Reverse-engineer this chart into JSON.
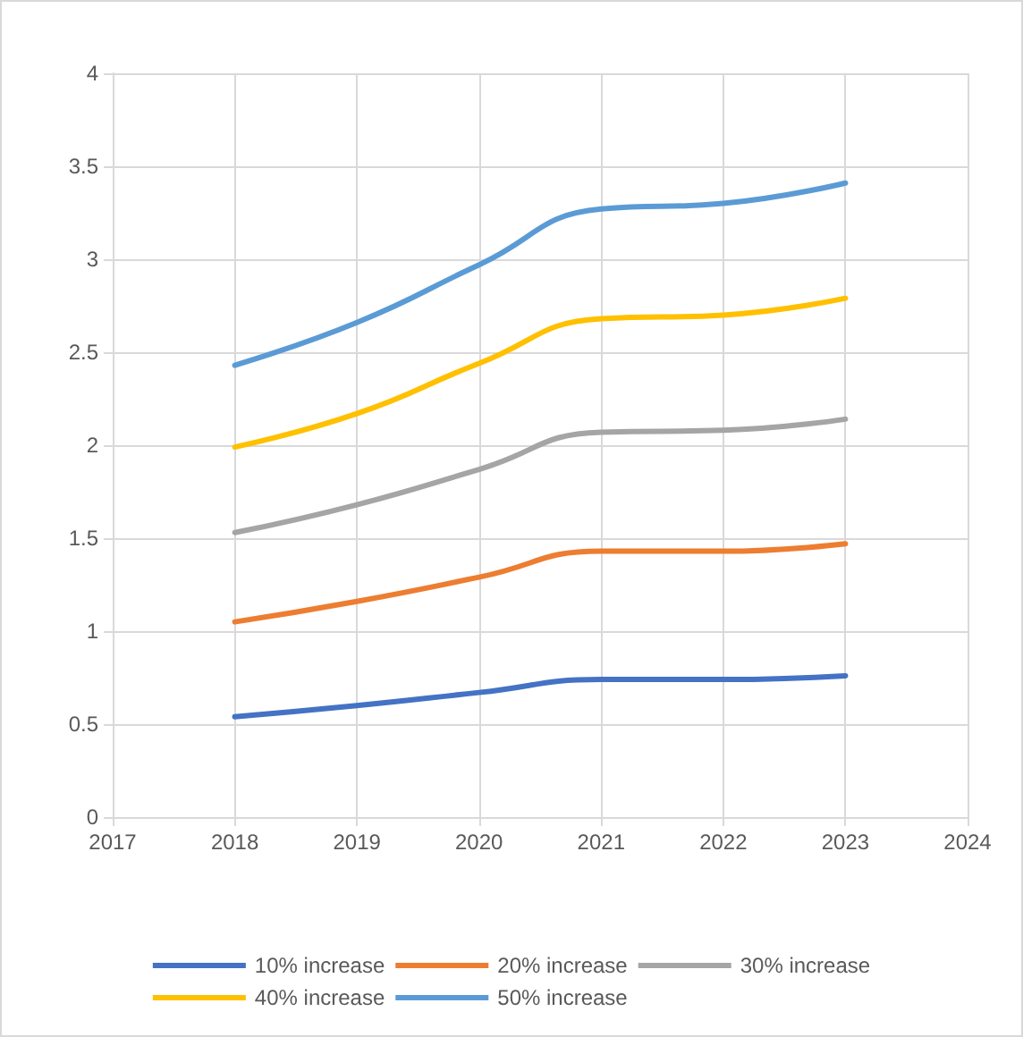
{
  "chart_data": {
    "type": "line",
    "x": [
      2018,
      2019,
      2020,
      2021,
      2022,
      2023
    ],
    "series": [
      {
        "name": "10% increase",
        "color": "#4472c4",
        "values": [
          0.54,
          0.6,
          0.67,
          0.74,
          0.74,
          0.76
        ]
      },
      {
        "name": "20% increase",
        "color": "#ed7d31",
        "values": [
          1.05,
          1.16,
          1.29,
          1.43,
          1.43,
          1.47
        ]
      },
      {
        "name": "30% increase",
        "color": "#a5a5a5",
        "values": [
          1.53,
          1.68,
          1.87,
          2.07,
          2.08,
          2.14
        ]
      },
      {
        "name": "40% increase",
        "color": "#ffc000",
        "values": [
          1.99,
          2.17,
          2.44,
          2.68,
          2.7,
          2.79
        ]
      },
      {
        "name": "50% increase",
        "color": "#5b9bd5",
        "values": [
          2.43,
          2.66,
          2.97,
          3.27,
          3.3,
          3.41
        ]
      }
    ],
    "xlim": [
      2017,
      2024
    ],
    "xticks": [
      2017,
      2018,
      2019,
      2020,
      2021,
      2022,
      2023,
      2024
    ],
    "ylim": [
      0,
      4
    ],
    "yticks": [
      0,
      0.5,
      1,
      1.5,
      2,
      2.5,
      3,
      3.5,
      4
    ],
    "grid": true,
    "legend": "bottom",
    "marker": "none",
    "line_style": "solid"
  }
}
